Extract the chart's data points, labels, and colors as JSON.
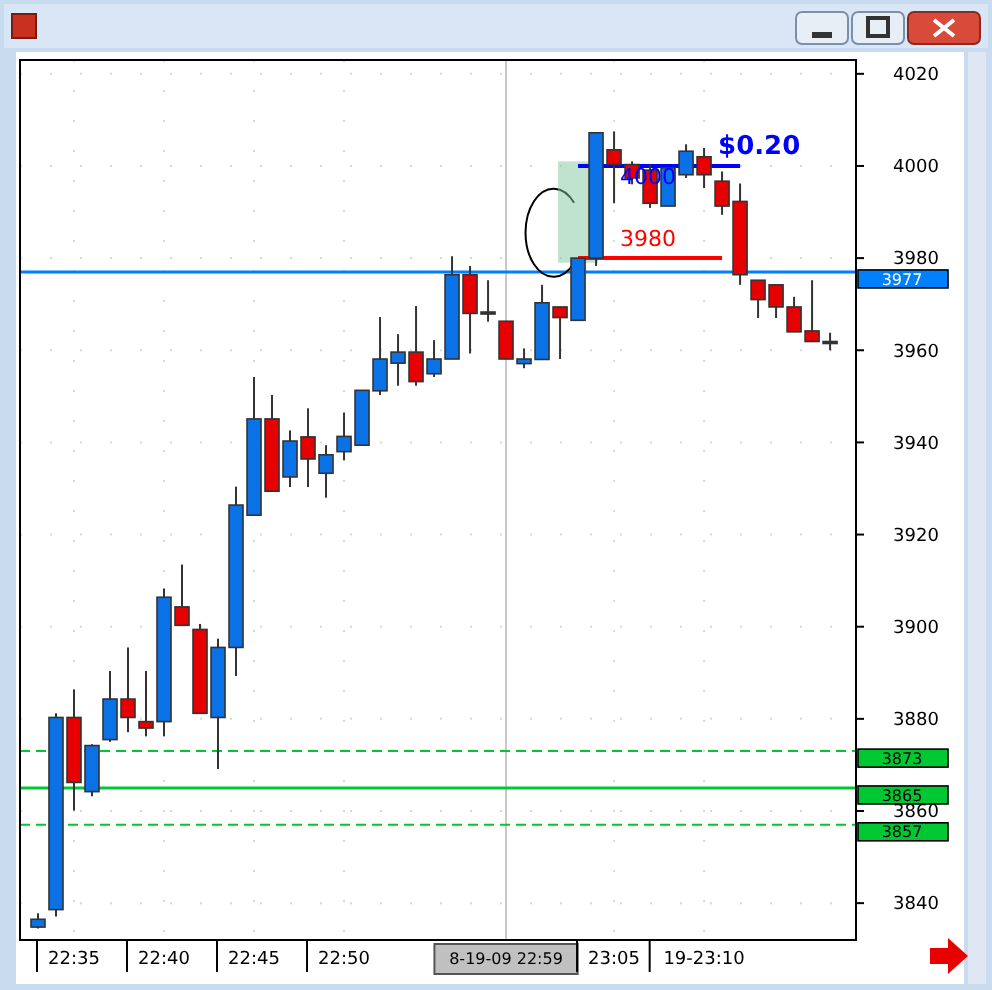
{
  "chart_data": {
    "type": "candlestick",
    "categories": [
      null,
      null,
      "22:35",
      null,
      null,
      null,
      null,
      "22:40",
      null,
      null,
      null,
      null,
      "22:45",
      null,
      null,
      null,
      null,
      "22:50",
      null,
      null,
      null,
      null,
      null,
      null,
      null,
      null,
      "8-19-09 22:59",
      null,
      null,
      null,
      null,
      null,
      "23:05",
      null,
      null,
      null,
      null,
      "19-23:10",
      null,
      null,
      null,
      null,
      null,
      null,
      null
    ],
    "ohlc": [
      [
        3834.8,
        3837.8,
        3834.5,
        3836.5
      ],
      [
        3838.6,
        3881.2,
        3837.1,
        3880.3
      ],
      [
        3880.3,
        3886.4,
        3860.1,
        3866.2
      ],
      [
        3864.2,
        3874.5,
        3863.2,
        3874.2
      ],
      [
        3875.5,
        3890.4,
        3875,
        3884.3
      ],
      [
        3884.3,
        3895.5,
        3877.1,
        3880.3
      ],
      [
        3879.4,
        3890.4,
        3876.2,
        3878
      ],
      [
        3879.4,
        3908.3,
        3876.2,
        3906.4
      ],
      [
        3904.3,
        3913.5,
        3900.3,
        3900.3
      ],
      [
        3899.4,
        3900.6,
        3881.2,
        3881.2
      ],
      [
        3880.3,
        3897.4,
        3869.1,
        3895.5
      ],
      [
        3895.5,
        3930.4,
        3889.3,
        3926.4
      ],
      [
        3924.2,
        3954.2,
        3924.2,
        3945.1
      ],
      [
        3945.1,
        3950.3,
        3929.4,
        3929.4
      ],
      [
        3932.5,
        3942.6,
        3930.3,
        3940.3
      ],
      [
        3941.2,
        3947.4,
        3930.3,
        3936.4
      ],
      [
        3933.3,
        3939.4,
        3928,
        3937.3
      ],
      [
        3938,
        3946.5,
        3936.1,
        3941.3
      ],
      [
        3939.4,
        3951.3,
        3939.4,
        3951.3
      ],
      [
        3951.2,
        3967.2,
        3950.3,
        3958.1
      ],
      [
        3957.2,
        3963.5,
        3952.3,
        3959.6
      ],
      [
        3959.6,
        3969.6,
        3952.3,
        3953.2
      ],
      [
        3954.9,
        3962.2,
        3954.2,
        3958.1
      ],
      [
        3958.1,
        3980.4,
        3958.1,
        3976.4
      ],
      [
        3976.4,
        3978.3,
        3959.3,
        3968
      ],
      [
        3968.3,
        3975.2,
        3966.2,
        3968
      ],
      [
        3966.3,
        3966.3,
        3958.1,
        3958.1
      ],
      [
        3957.1,
        3960.4,
        3956.1,
        3958.1
      ],
      [
        3958,
        3974.2,
        3958,
        3970.3
      ],
      [
        3969.4,
        3969.4,
        3958.1,
        3967.1
      ],
      [
        3966.5,
        3980,
        3966.5,
        3980
      ],
      [
        3980,
        4007.2,
        3978.3,
        4007.2
      ],
      [
        4003.5,
        4007.5,
        3991.9,
        4000.3
      ],
      [
        4000.3,
        4001,
        3996,
        3997.4
      ],
      [
        3999.1,
        4000.3,
        3990.9,
        3991.9
      ],
      [
        3991.3,
        3999.6,
        3991.3,
        3999.6
      ],
      [
        3998.1,
        4004.7,
        3997.4,
        4003.2
      ],
      [
        4002,
        4003.9,
        3995.2,
        3998.1
      ],
      [
        3996.7,
        3998.8,
        3989.4,
        3991.3
      ],
      [
        3992.3,
        3996.2,
        3974.2,
        3976.4
      ],
      [
        3975.2,
        3975.2,
        3967,
        3971
      ],
      [
        3974.2,
        3974.2,
        3967,
        3969.4
      ],
      [
        3969.4,
        3971.6,
        3964,
        3964
      ],
      [
        3964.2,
        3975.2,
        3961.9,
        3961.9
      ],
      [
        3961.9,
        3963.8,
        3960,
        3961.9
      ]
    ],
    "colors": [
      "#0a72e6",
      "#0a72e6",
      "#e60000",
      "#0a72e6",
      "#0a72e6",
      "#e60000",
      "#e60000",
      "#0a72e6",
      "#e60000",
      "#e60000",
      "#0a72e6",
      "#0a72e6",
      "#0a72e6",
      "#e60000",
      "#0a72e6",
      "#e60000",
      "#0a72e6",
      "#0a72e6",
      "#0a72e6",
      "#0a72e6",
      "#0a72e6",
      "#e60000",
      "#0a72e6",
      "#0a72e6",
      "#e60000",
      "#333333",
      "#e60000",
      "#0a72e6",
      "#0a72e6",
      "#e60000",
      "#0a72e6",
      "#0a72e6",
      "#e60000",
      "#e60000",
      "#e60000",
      "#0a72e6",
      "#0a72e6",
      "#e60000",
      "#e60000",
      "#e60000",
      "#e60000",
      "#e60000",
      "#e60000",
      "#e60000",
      "#333333"
    ],
    "series": [
      {
        "type": "line",
        "color": "#0000ff",
        "values": [
          null,
          null,
          null,
          null,
          null,
          null,
          null,
          null,
          null,
          null,
          null,
          null,
          null,
          null,
          null,
          null,
          null,
          null,
          null,
          null,
          null,
          null,
          null,
          null,
          null,
          null,
          null,
          null,
          null,
          null,
          4000,
          4000,
          4000,
          4000,
          4000,
          4000,
          4000,
          4000,
          4000,
          4000,
          null,
          null,
          null,
          null,
          null
        ]
      },
      {
        "type": "line",
        "color": "#ff0000",
        "values": [
          null,
          null,
          null,
          null,
          null,
          null,
          null,
          null,
          null,
          null,
          null,
          null,
          null,
          null,
          null,
          null,
          null,
          null,
          null,
          null,
          null,
          null,
          null,
          null,
          null,
          null,
          null,
          null,
          null,
          null,
          3980,
          3980,
          3980,
          3980,
          3980,
          3980,
          3980,
          3980,
          3980,
          null,
          null,
          null,
          null,
          null,
          null
        ]
      }
    ],
    "ylim": [
      3832,
      4023
    ],
    "yticks": [
      3840,
      3860,
      3880,
      3900,
      3920,
      3940,
      3960,
      3980,
      4000,
      4020
    ],
    "grid": true,
    "ref_lines": [
      {
        "axis": "y",
        "value": 3977,
        "label": "3977",
        "color": "#0080ff",
        "line_style": "solid"
      },
      {
        "axis": "y",
        "value": 3873,
        "label": "3873",
        "color": "#00c832",
        "line_style": "dashed"
      },
      {
        "axis": "y",
        "value": 3865,
        "label": "3865",
        "color": "#00c832",
        "line_style": "solid"
      },
      {
        "axis": "y",
        "value": 3857,
        "label": "3857",
        "color": "#00c832",
        "line_style": "dashed"
      },
      {
        "axis": "x",
        "value": "8-19-09 22:59",
        "color": "#c8c8c8",
        "line_style": "solid"
      }
    ],
    "annotations": [
      "$0.20",
      {
        "text": "4000",
        "y": 4000
      },
      {
        "text": "3980",
        "y": 3980
      }
    ]
  }
}
